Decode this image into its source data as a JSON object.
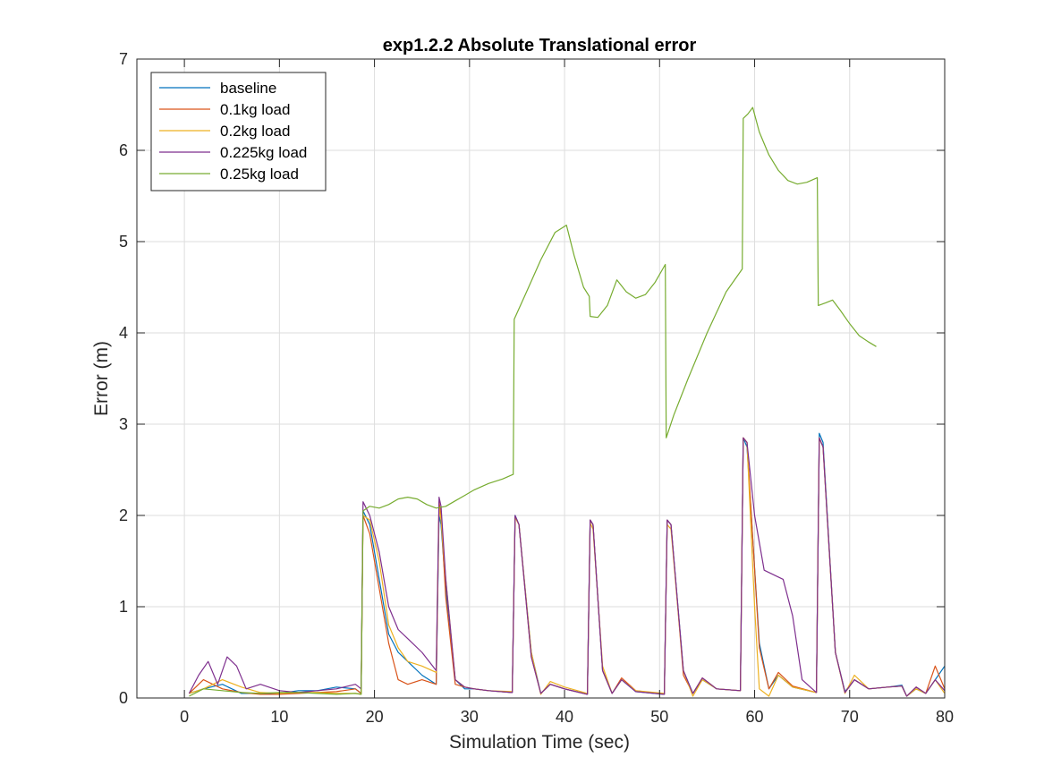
{
  "chart_data": {
    "type": "line",
    "title": "exp1.2.2 Absolute Translational error",
    "xlabel": "Simulation Time (sec)",
    "ylabel": "Error (m)",
    "xlim": [
      -5,
      80
    ],
    "ylim": [
      0,
      7
    ],
    "xticks": [
      0,
      10,
      20,
      30,
      40,
      50,
      60,
      70,
      80
    ],
    "yticks": [
      0,
      1,
      2,
      3,
      4,
      5,
      6,
      7
    ],
    "grid": true,
    "legend_position": "top-left",
    "series": [
      {
        "name": "baseline",
        "color": "#0072BD",
        "x": [
          0.5,
          2,
          4,
          6,
          8,
          10,
          12,
          14,
          16,
          18,
          18.6,
          18.8,
          19.5,
          20.5,
          21.5,
          22.5,
          23.5,
          25,
          26.5,
          26.8,
          27,
          27.5,
          28.5,
          29.5,
          30.5,
          32,
          34.5,
          34.8,
          35.2,
          36.5,
          37.5,
          38.5,
          40,
          42.4,
          42.7,
          43,
          44,
          45,
          46,
          47.5,
          50.5,
          50.8,
          51.2,
          52.5,
          53.5,
          54.5,
          56,
          58.5,
          58.8,
          59.2,
          60.5,
          61.5,
          62.5,
          64,
          66.5,
          66.8,
          67.2,
          68.5,
          69.5,
          70.5,
          72,
          74,
          75.5,
          76,
          77,
          78,
          79,
          80
        ],
        "y": [
          0.05,
          0.1,
          0.15,
          0.05,
          0.05,
          0.05,
          0.08,
          0.08,
          0.12,
          0.1,
          0.05,
          2.05,
          1.9,
          1.3,
          0.7,
          0.5,
          0.4,
          0.25,
          0.15,
          2.0,
          1.9,
          1.2,
          0.2,
          0.1,
          0.1,
          0.08,
          0.06,
          2.0,
          1.9,
          0.5,
          0.05,
          0.15,
          0.1,
          0.04,
          1.95,
          1.9,
          0.3,
          0.05,
          0.2,
          0.07,
          0.04,
          1.95,
          1.9,
          0.3,
          0.05,
          0.2,
          0.1,
          0.08,
          2.85,
          2.75,
          0.6,
          0.1,
          0.25,
          0.12,
          0.06,
          2.9,
          2.8,
          0.5,
          0.07,
          0.2,
          0.1,
          0.12,
          0.14,
          0.02,
          0.1,
          0.05,
          0.2,
          0.35
        ]
      },
      {
        "name": "0.1kg load",
        "color": "#D95319",
        "x": [
          0.5,
          2,
          4,
          6,
          8,
          10,
          12,
          14,
          16,
          18,
          18.6,
          18.8,
          19.5,
          20.5,
          21.5,
          22.5,
          23.5,
          25,
          26.5,
          26.8,
          27,
          27.5,
          28.5,
          29.5,
          30.5,
          32,
          34.5,
          34.8,
          35.2,
          36.5,
          37.5,
          38.5,
          40,
          42.4,
          42.7,
          43,
          44,
          45,
          46,
          47.5,
          50.5,
          50.8,
          51.2,
          52.5,
          53.5,
          54.5,
          56,
          58.5,
          58.8,
          59.2,
          60.5,
          61.5,
          62.5,
          64,
          66.5,
          66.8,
          67.2,
          68.5,
          69.5,
          70.5,
          72,
          74,
          75.5,
          76,
          77,
          78,
          79,
          80
        ],
        "y": [
          0.05,
          0.2,
          0.1,
          0.06,
          0.04,
          0.04,
          0.05,
          0.06,
          0.07,
          0.1,
          0.05,
          2.0,
          1.8,
          1.2,
          0.6,
          0.2,
          0.15,
          0.2,
          0.15,
          2.15,
          2.0,
          1.1,
          0.15,
          0.12,
          0.1,
          0.08,
          0.06,
          1.98,
          1.9,
          0.45,
          0.05,
          0.15,
          0.1,
          0.04,
          1.95,
          1.9,
          0.3,
          0.05,
          0.22,
          0.08,
          0.04,
          1.95,
          1.9,
          0.25,
          0.05,
          0.22,
          0.1,
          0.08,
          2.85,
          2.8,
          0.55,
          0.1,
          0.28,
          0.13,
          0.06,
          2.85,
          2.75,
          0.5,
          0.06,
          0.2,
          0.1,
          0.12,
          0.13,
          0.02,
          0.12,
          0.05,
          0.35,
          0.1
        ]
      },
      {
        "name": "0.2kg load",
        "color": "#EDB120",
        "x": [
          0.5,
          2,
          4,
          6,
          8,
          10,
          12,
          14,
          16,
          18,
          18.6,
          18.8,
          19.5,
          20.5,
          21.5,
          22.5,
          23.5,
          25,
          26.5,
          26.8,
          27,
          27.5,
          28.5,
          29.5,
          30.5,
          32,
          34.5,
          34.8,
          35.2,
          36.5,
          37.5,
          38.5,
          40,
          42.4,
          42.7,
          43,
          44,
          45,
          46,
          47.5,
          50.5,
          50.8,
          51.2,
          52.5,
          53.5,
          54.5,
          56,
          58.5,
          58.8,
          59.2,
          60,
          60.5,
          61.5,
          62.5,
          64,
          66.5,
          66.8,
          67.2,
          68.5,
          69.5,
          70.5,
          72,
          74,
          75.5,
          76,
          77,
          78,
          79,
          80
        ],
        "y": [
          0.05,
          0.1,
          0.2,
          0.12,
          0.06,
          0.05,
          0.06,
          0.06,
          0.05,
          0.05,
          0.04,
          2.0,
          1.95,
          1.5,
          0.8,
          0.55,
          0.4,
          0.35,
          0.28,
          2.1,
          1.95,
          1.3,
          0.2,
          0.12,
          0.1,
          0.08,
          0.07,
          1.98,
          1.9,
          0.5,
          0.04,
          0.18,
          0.12,
          0.05,
          1.92,
          1.85,
          0.35,
          0.05,
          0.2,
          0.08,
          0.05,
          1.9,
          1.85,
          0.3,
          0.02,
          0.2,
          0.1,
          0.08,
          2.85,
          2.8,
          1.0,
          0.1,
          0.02,
          0.25,
          0.12,
          0.06,
          2.85,
          2.75,
          0.5,
          0.05,
          0.25,
          0.1,
          0.12,
          0.13,
          0.02,
          0.1,
          0.05,
          0.2,
          0.05
        ]
      },
      {
        "name": "0.225kg load",
        "color": "#7E2F8E",
        "x": [
          0.5,
          1.5,
          2.5,
          3.5,
          4.5,
          5.5,
          6.5,
          8,
          10,
          12,
          14,
          16,
          18,
          18.6,
          18.8,
          19.5,
          20.5,
          21.5,
          22.5,
          23.5,
          25,
          26.5,
          26.8,
          27,
          27.5,
          28.5,
          29.5,
          30.5,
          32,
          34.5,
          34.8,
          35.2,
          36.5,
          37.5,
          38.5,
          40,
          42.4,
          42.7,
          43,
          44,
          45,
          46,
          47.5,
          50.5,
          50.8,
          51.2,
          52.5,
          53.5,
          54.5,
          56,
          58.5,
          58.8,
          59.2,
          60,
          61,
          62,
          63,
          64,
          65,
          66.5,
          66.8,
          67.2,
          68.5,
          69.5,
          70.5,
          72,
          74,
          75.5,
          76,
          77,
          78,
          79,
          80
        ],
        "y": [
          0.05,
          0.25,
          0.4,
          0.15,
          0.45,
          0.35,
          0.1,
          0.15,
          0.08,
          0.06,
          0.08,
          0.1,
          0.15,
          0.1,
          2.15,
          2.0,
          1.6,
          1.0,
          0.75,
          0.65,
          0.5,
          0.3,
          2.2,
          2.1,
          1.3,
          0.2,
          0.12,
          0.1,
          0.08,
          0.06,
          2.0,
          1.9,
          0.45,
          0.05,
          0.15,
          0.1,
          0.04,
          1.95,
          1.9,
          0.3,
          0.05,
          0.2,
          0.07,
          0.04,
          1.95,
          1.9,
          0.3,
          0.05,
          0.22,
          0.1,
          0.08,
          2.85,
          2.8,
          2.0,
          1.4,
          1.35,
          1.3,
          0.9,
          0.2,
          0.06,
          2.85,
          2.75,
          0.5,
          0.06,
          0.2,
          0.1,
          0.12,
          0.13,
          0.02,
          0.12,
          0.05,
          0.2,
          0.08
        ]
      },
      {
        "name": "0.25kg load",
        "color": "#77AC30",
        "x": [
          0.5,
          2,
          4,
          6,
          8,
          10,
          12,
          14,
          16,
          18,
          18.6,
          18.8,
          19.5,
          20.5,
          21.5,
          22.5,
          23.5,
          24.5,
          25.5,
          26.5,
          27.5,
          28.5,
          29.5,
          30.5,
          32,
          33.5,
          34.6,
          34.7,
          36,
          37.5,
          39,
          40.2,
          41,
          42,
          42.6,
          42.7,
          43.5,
          44.5,
          45.5,
          46.5,
          47.5,
          48.5,
          49.5,
          50.6,
          50.7,
          51.5,
          53,
          55,
          57,
          58.7,
          58.8,
          59.3,
          59.8,
          60.5,
          61.5,
          62.5,
          63.5,
          64.5,
          65.5,
          66.6,
          66.7,
          67.5,
          68.2,
          69,
          70,
          71,
          72,
          72.8
        ],
        "y": [
          0.02,
          0.1,
          0.08,
          0.06,
          0.05,
          0.06,
          0.06,
          0.05,
          0.04,
          0.05,
          0.04,
          2.05,
          2.1,
          2.08,
          2.12,
          2.18,
          2.2,
          2.18,
          2.12,
          2.08,
          2.1,
          2.16,
          2.22,
          2.28,
          2.35,
          2.4,
          2.45,
          4.15,
          4.45,
          4.8,
          5.1,
          5.18,
          4.85,
          4.5,
          4.4,
          4.18,
          4.17,
          4.3,
          4.58,
          4.45,
          4.38,
          4.42,
          4.55,
          4.75,
          2.85,
          3.1,
          3.5,
          4.0,
          4.45,
          4.7,
          6.35,
          6.4,
          6.47,
          6.2,
          5.95,
          5.78,
          5.67,
          5.63,
          5.65,
          5.7,
          4.3,
          4.33,
          4.36,
          4.25,
          4.1,
          3.97,
          3.9,
          3.85
        ]
      }
    ]
  }
}
